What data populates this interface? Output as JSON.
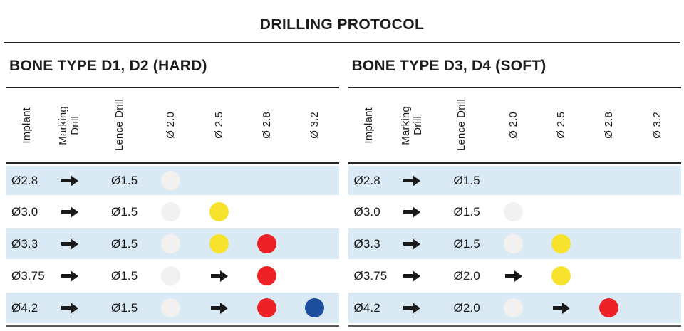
{
  "title": "DRILLING PROTOCOL",
  "columns": [
    "Implant",
    "Marking\nDrill",
    "Lence Drill",
    "Ø 2.0",
    "Ø 2.5",
    "Ø 2.8",
    "Ø 3.2"
  ],
  "colors": {
    "row_highlight": "#daeaf5",
    "dot_white": "#f2f1ef",
    "dot_yellow": "#f7e32e",
    "dot_red": "#ec2227",
    "dot_blue": "#1c4e9d",
    "rule_dark": "#1d1d1b",
    "bottom_bar": "#58595b"
  },
  "tables": [
    {
      "heading": "BONE TYPE D1, D2 (HARD)",
      "rows": [
        {
          "implant": "Ø2.8",
          "marking": "arrow",
          "lence": "Ø1.5",
          "steps": [
            "dot-white",
            "empty",
            "empty",
            "empty"
          ]
        },
        {
          "implant": "Ø3.0",
          "marking": "arrow",
          "lence": "Ø1.5",
          "steps": [
            "dot-white",
            "dot-yellow",
            "empty",
            "empty"
          ]
        },
        {
          "implant": "Ø3.3",
          "marking": "arrow",
          "lence": "Ø1.5",
          "steps": [
            "dot-white",
            "dot-yellow",
            "dot-red",
            "empty"
          ]
        },
        {
          "implant": "Ø3.75",
          "marking": "arrow",
          "lence": "Ø1.5",
          "steps": [
            "dot-white",
            "arrow",
            "dot-red",
            "empty"
          ]
        },
        {
          "implant": "Ø4.2",
          "marking": "arrow",
          "lence": "Ø1.5",
          "steps": [
            "dot-white",
            "arrow",
            "dot-red",
            "dot-blue"
          ]
        }
      ]
    },
    {
      "heading": "BONE TYPE D3, D4 (SOFT)",
      "rows": [
        {
          "implant": "Ø2.8",
          "marking": "arrow",
          "lence": "Ø1.5",
          "steps": [
            "empty",
            "empty",
            "empty",
            "empty"
          ]
        },
        {
          "implant": "Ø3.0",
          "marking": "arrow",
          "lence": "Ø1.5",
          "steps": [
            "dot-white",
            "empty",
            "empty",
            "empty"
          ]
        },
        {
          "implant": "Ø3.3",
          "marking": "arrow",
          "lence": "Ø1.5",
          "steps": [
            "dot-white",
            "dot-yellow",
            "empty",
            "empty"
          ]
        },
        {
          "implant": "Ø3.75",
          "marking": "arrow",
          "lence": "Ø2.0",
          "steps": [
            "arrow",
            "dot-yellow",
            "empty",
            "empty"
          ]
        },
        {
          "implant": "Ø4.2",
          "marking": "arrow",
          "lence": "Ø2.0",
          "steps": [
            "dot-white",
            "arrow",
            "dot-red",
            "empty"
          ]
        }
      ]
    }
  ]
}
